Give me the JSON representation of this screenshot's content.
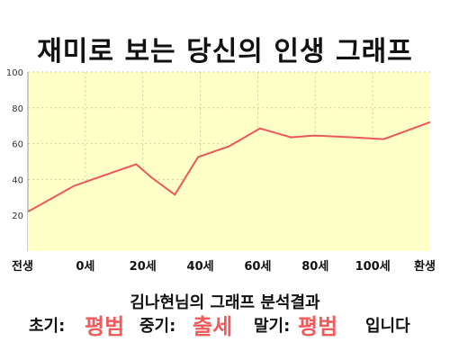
{
  "title": "재미로 보는 당신의 인생 그래프",
  "chart_data": {
    "type": "area",
    "x": [
      "전생",
      "0세",
      "20세",
      "40세",
      "60세",
      "80세",
      "100세",
      "환생"
    ],
    "series": [
      {
        "x": [
          -15,
          0,
          20,
          25,
          32.5,
          40,
          50,
          60,
          70,
          77.5,
          90,
          100,
          115
        ],
        "values": [
          22,
          36.5,
          48.5,
          41,
          31.5,
          52.5,
          58.5,
          68.5,
          63.5,
          64.5,
          63.5,
          62.5,
          72
        ]
      }
    ],
    "xlim": [
      -15,
      115
    ],
    "ylim": [
      0,
      100
    ],
    "yticks": [
      20,
      40,
      60,
      80,
      100
    ],
    "grid": true,
    "colors": {
      "line": "#e8585c",
      "fill": "#ffffc8",
      "grid": "#c8d39a"
    }
  },
  "result": {
    "heading": "김나현님의 그래프 분석결과",
    "early_label": "초기:",
    "early_value": "평범",
    "middle_label": "중기:",
    "middle_value": "출세",
    "late_label": "말기:",
    "late_value": "평범",
    "suffix": "입니다"
  }
}
